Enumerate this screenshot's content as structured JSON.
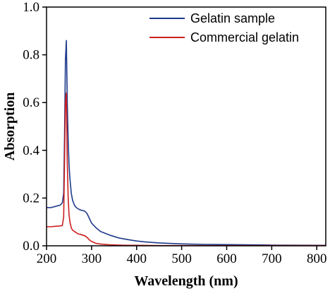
{
  "chart_data": {
    "type": "line",
    "xlabel": "Wavelength (nm)",
    "ylabel": "Absorption",
    "xlim": [
      200,
      820
    ],
    "ylim": [
      0,
      1.0
    ],
    "xticks": [
      200,
      300,
      400,
      500,
      600,
      700,
      800
    ],
    "yticks": [
      0.0,
      0.2,
      0.4,
      0.6,
      0.8,
      1.0
    ],
    "ytick_labels": [
      "0.0",
      "0.2",
      "0.4",
      "0.6",
      "0.8",
      "1.0"
    ],
    "legend_position": "top-right",
    "grid": false,
    "series": [
      {
        "name": "Gelatin sample",
        "color": "#1f3a8a",
        "x": [
          200,
          210,
          220,
          230,
          235,
          238,
          240,
          242,
          244,
          246,
          248,
          250,
          252,
          255,
          258,
          262,
          266,
          270,
          275,
          280,
          285,
          290,
          295,
          300,
          310,
          320,
          340,
          360,
          380,
          400,
          420,
          450,
          500,
          550,
          600,
          700,
          800,
          820
        ],
        "y": [
          0.16,
          0.16,
          0.165,
          0.17,
          0.18,
          0.22,
          0.45,
          0.78,
          0.86,
          0.6,
          0.44,
          0.34,
          0.28,
          0.22,
          0.19,
          0.17,
          0.16,
          0.155,
          0.15,
          0.148,
          0.145,
          0.135,
          0.115,
          0.095,
          0.075,
          0.06,
          0.045,
          0.033,
          0.026,
          0.02,
          0.016,
          0.012,
          0.008,
          0.006,
          0.005,
          0.003,
          0.002,
          0.002
        ]
      },
      {
        "name": "Commercial gelatin",
        "color": "#cc1f1f",
        "x": [
          200,
          210,
          220,
          230,
          235,
          238,
          240,
          242,
          244,
          246,
          248,
          250,
          252,
          255,
          258,
          262,
          266,
          270,
          275,
          280,
          285,
          290,
          295,
          300,
          310,
          320,
          340,
          360,
          380,
          400,
          450,
          500,
          600,
          700,
          800,
          820
        ],
        "y": [
          0.08,
          0.08,
          0.082,
          0.083,
          0.085,
          0.12,
          0.35,
          0.6,
          0.64,
          0.35,
          0.2,
          0.13,
          0.1,
          0.075,
          0.065,
          0.06,
          0.055,
          0.05,
          0.048,
          0.045,
          0.042,
          0.035,
          0.025,
          0.018,
          0.01,
          0.007,
          0.004,
          0.003,
          0.002,
          0.002,
          0.001,
          0.001,
          0.001,
          0.001,
          0.001,
          0.001
        ]
      }
    ]
  }
}
